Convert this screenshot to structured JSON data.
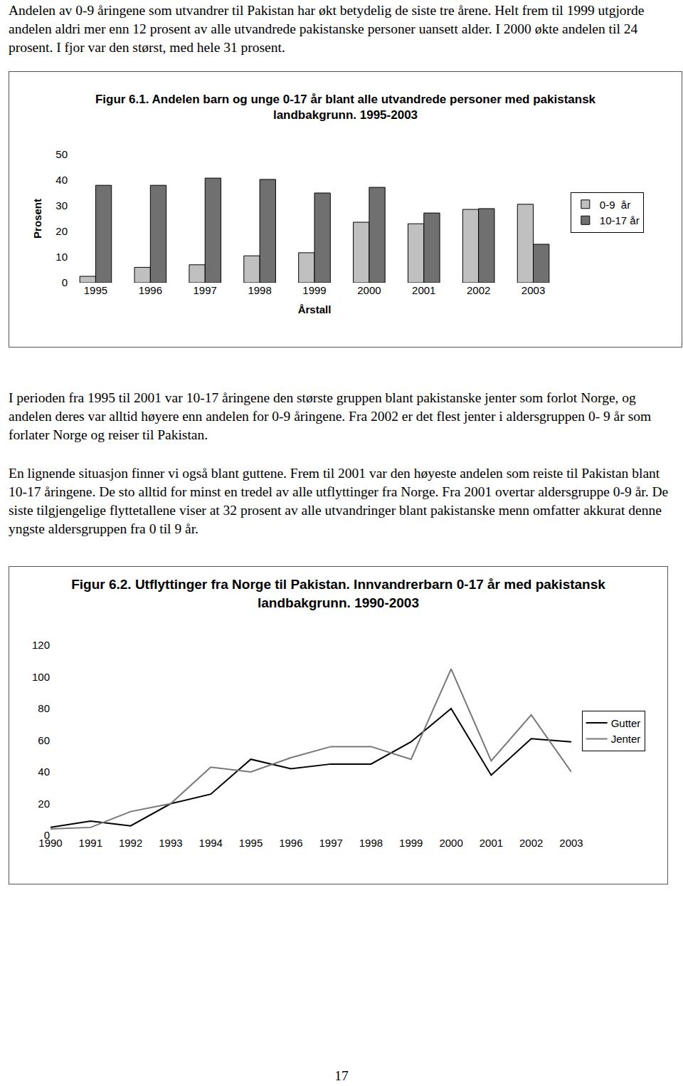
{
  "paragraphs": [
    "Andelen av 0-9 åringene som utvandrer til Pakistan har økt betydelig de siste tre årene. Helt frem til 1999 utgjorde andelen aldri mer enn 12 prosent av alle utvandrede pakistanske personer uansett alder. I 2000 økte andelen til 24 prosent. I fjor var den størst, med hele 31 prosent.",
    "I perioden fra 1995 til 2001 var 10-17 åringene den største gruppen blant pakistanske jenter som forlot Norge, og andelen deres var alltid høyere enn andelen for 0-9 åringene. Fra 2002 er det flest jenter i aldersgruppen 0- 9 år som forlater Norge og reiser til Pakistan.",
    "En lignende situasjon finner vi også blant guttene. Frem til 2001 var den høyeste andelen som reiste til Pakistan blant 10-17 åringene. De sto alltid for minst en tredel av alle utflyttinger fra Norge. Fra 2001 overtar aldersgruppe 0-9 år. De siste tilgjengelige flyttetallene viser at 32 prosent av alle utvandringer blant pakistanske menn omfatter akkurat denne yngste aldersgruppen fra 0 til 9 år."
  ],
  "chart_data": [
    {
      "type": "bar",
      "title": "Figur 6.1. Andelen barn og unge 0-17 år blant alle utvandrede personer med pakistansk landbakgrunn. 1995-2003",
      "x_label": "Årstall",
      "y_label": "Prosent",
      "categories": [
        "1995",
        "1996",
        "1997",
        "1998",
        "1999",
        "2000",
        "2001",
        "2002",
        "2003"
      ],
      "series": [
        {
          "name": "0-9  år",
          "color": "#c0c0c0",
          "values": [
            2.5,
            6,
            7,
            10.5,
            11.7,
            23.6,
            23,
            28.6,
            30.6
          ]
        },
        {
          "name": "10-17 år",
          "color": "#707070",
          "values": [
            38,
            38,
            40.8,
            40.3,
            35,
            37.2,
            27.2,
            28.9,
            15
          ]
        }
      ],
      "ylim": [
        0,
        50
      ],
      "yticks": [
        0,
        10,
        20,
        30,
        40,
        50
      ],
      "grid": false,
      "legend": "right"
    },
    {
      "type": "line",
      "title": "Figur 6.2. Utflyttinger fra Norge til Pakistan. Innvandrerbarn 0-17 år med pakistansk landbakgrunn. 1990-2003",
      "categories": [
        "1990",
        "1991",
        "1992",
        "1993",
        "1994",
        "1995",
        "1996",
        "1997",
        "1998",
        "1999",
        "2000",
        "2001",
        "2002",
        "2003"
      ],
      "series": [
        {
          "name": "Gutter",
          "color": "#000000",
          "values": [
            5,
            9,
            6,
            20,
            26,
            48,
            42,
            45,
            45,
            59,
            80,
            38,
            61,
            59
          ]
        },
        {
          "name": "Jenter",
          "color": "#777777",
          "values": [
            4,
            5,
            15,
            20,
            43,
            40,
            49,
            56,
            56,
            48,
            105,
            47,
            76,
            40
          ]
        }
      ],
      "ylim": [
        0,
        120
      ],
      "yticks": [
        0,
        20,
        40,
        60,
        80,
        100,
        120
      ],
      "grid": false,
      "legend": "right"
    }
  ],
  "page_number": "17"
}
